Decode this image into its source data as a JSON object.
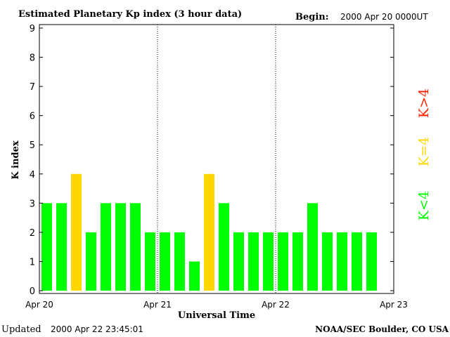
{
  "header": {
    "title": "Estimated Planetary Kp index (3 hour data)",
    "begin_label": "Begin:",
    "begin_value": "2000 Apr 20 0000UT"
  },
  "footer": {
    "updated_label": "Updated",
    "updated_value": "2000 Apr 22 23:45:01",
    "source": "NOAA/SEC Boulder, CO USA"
  },
  "legend": {
    "low": {
      "label": "K<4",
      "color": "#00ff00"
    },
    "mid": {
      "label": "K=4",
      "color": "#ffd700"
    },
    "high": {
      "label": "K>4",
      "color": "#ff2200"
    }
  },
  "colors": {
    "low": "#00ff00",
    "mid": "#ffd700",
    "high": "#ff2200"
  },
  "chart_data": {
    "type": "bar",
    "title": "Estimated Planetary Kp index (3 hour data)",
    "xlabel": "Universal Time",
    "ylabel": "K index",
    "ylim": [
      0,
      9
    ],
    "yticks": [
      "0",
      "1",
      "2",
      "3",
      "4",
      "5",
      "6",
      "7",
      "8",
      "9"
    ],
    "xticks": [
      "Apr 20",
      "Apr 21",
      "Apr 22",
      "Apr 23"
    ],
    "day_separators": "dotted",
    "bars_per_day": 8,
    "values": [
      3,
      3,
      4,
      2,
      3,
      3,
      3,
      2,
      2,
      2,
      1,
      4,
      3,
      2,
      2,
      2,
      2,
      2,
      3,
      2,
      2,
      2,
      2
    ]
  }
}
